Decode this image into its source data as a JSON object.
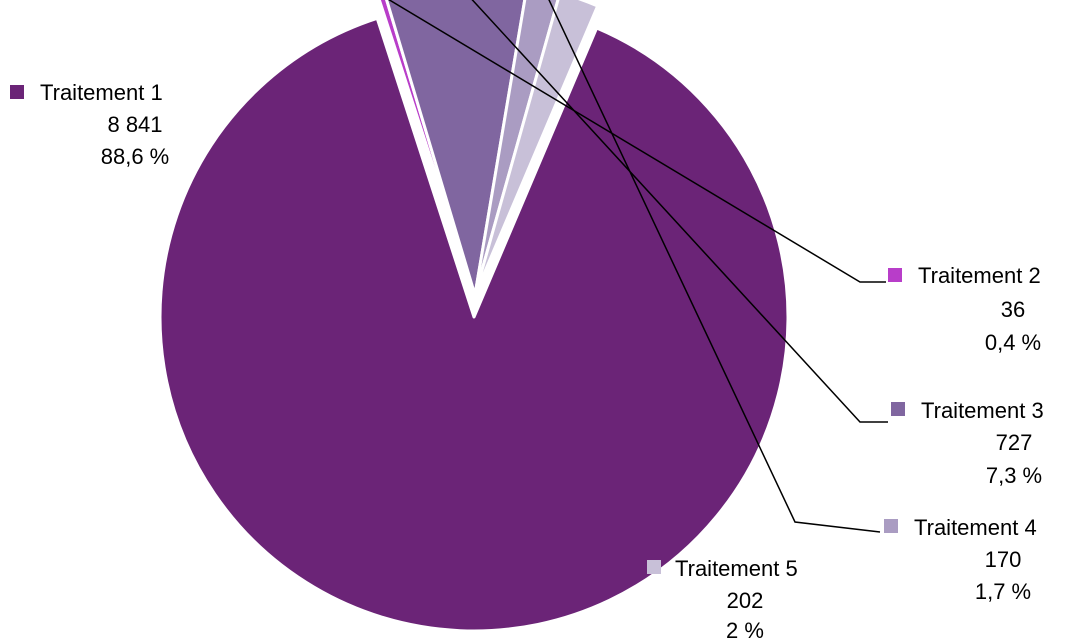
{
  "chart_data": {
    "type": "pie",
    "title": "",
    "start_angle_deg": -67,
    "direction": "clockwise",
    "slices": [
      {
        "name": "Traitement 1",
        "value": 8841,
        "value_label": "8 841",
        "percent_label": "88,6 %",
        "color": "#6b2477",
        "exploded": false
      },
      {
        "name": "Traitement 2",
        "value": 36,
        "value_label": "36",
        "percent_label": "0,4 %",
        "color": "#b83dc9",
        "exploded": true
      },
      {
        "name": "Traitement 3",
        "value": 727,
        "value_label": "727",
        "percent_label": "7,3 %",
        "color": "#8066a0",
        "exploded": true
      },
      {
        "name": "Traitement 4",
        "value": 170,
        "value_label": "170",
        "percent_label": "1,7 %",
        "color": "#aa9cc2",
        "exploded": true
      },
      {
        "name": "Traitement 5",
        "value": 202,
        "value_label": "202",
        "percent_label": "2 %",
        "color": "#c8c0d8",
        "exploded": true
      }
    ]
  }
}
